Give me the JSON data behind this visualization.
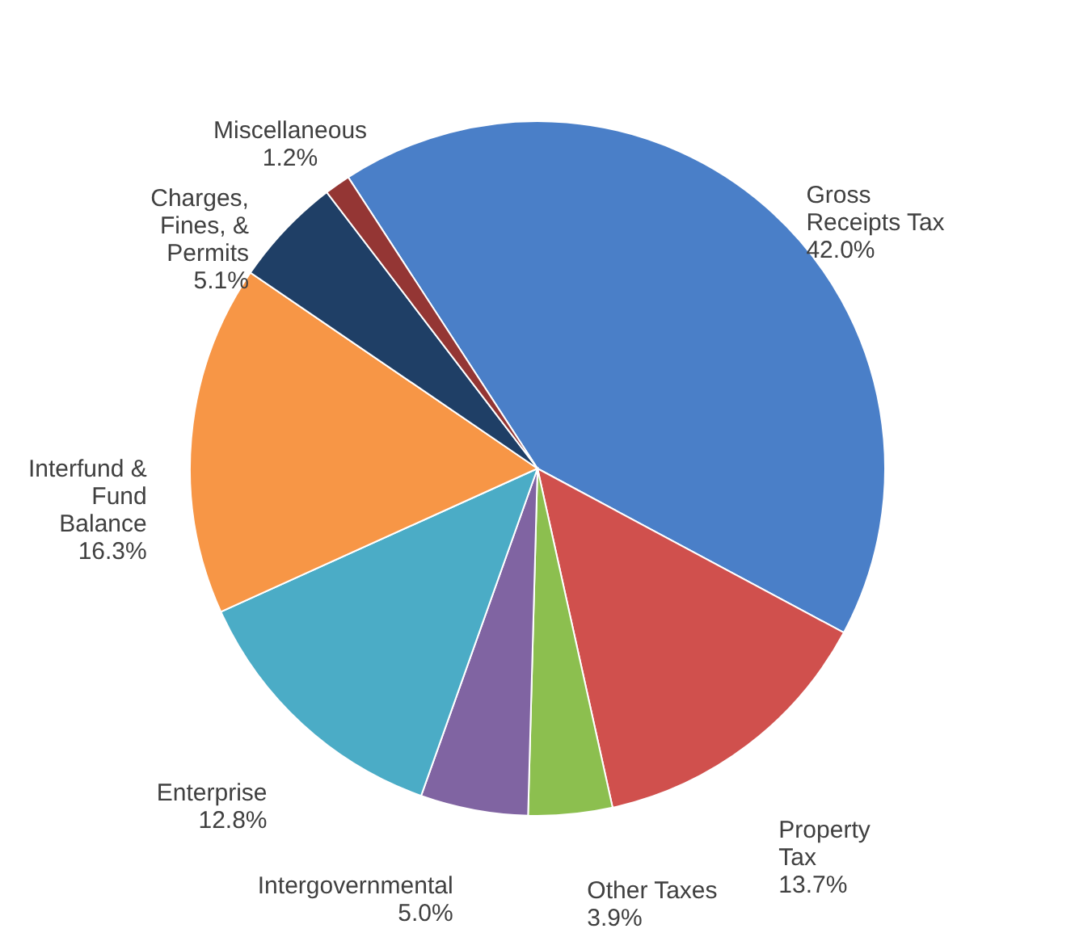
{
  "chart_data": {
    "type": "pie",
    "categories": [
      "Gross\nReceipts Tax",
      "Property\nTax",
      "Other Taxes",
      "Intergovernmental",
      "Enterprise",
      "Interfund &\nFund\nBalance",
      "Charges,\nFines, &\nPermits",
      "Miscellaneous"
    ],
    "values": [
      42.0,
      13.7,
      3.9,
      5.0,
      12.8,
      16.3,
      5.1,
      1.2
    ],
    "value_labels": [
      "42.0%",
      "13.7%",
      "3.9%",
      "5.0%",
      "12.8%",
      "16.3%",
      "5.1%",
      "1.2%"
    ],
    "colors": [
      "#4a7fc8",
      "#d0504d",
      "#8cbf4f",
      "#8064a2",
      "#4bacc6",
      "#f79646",
      "#1f3f66",
      "#943634"
    ]
  }
}
